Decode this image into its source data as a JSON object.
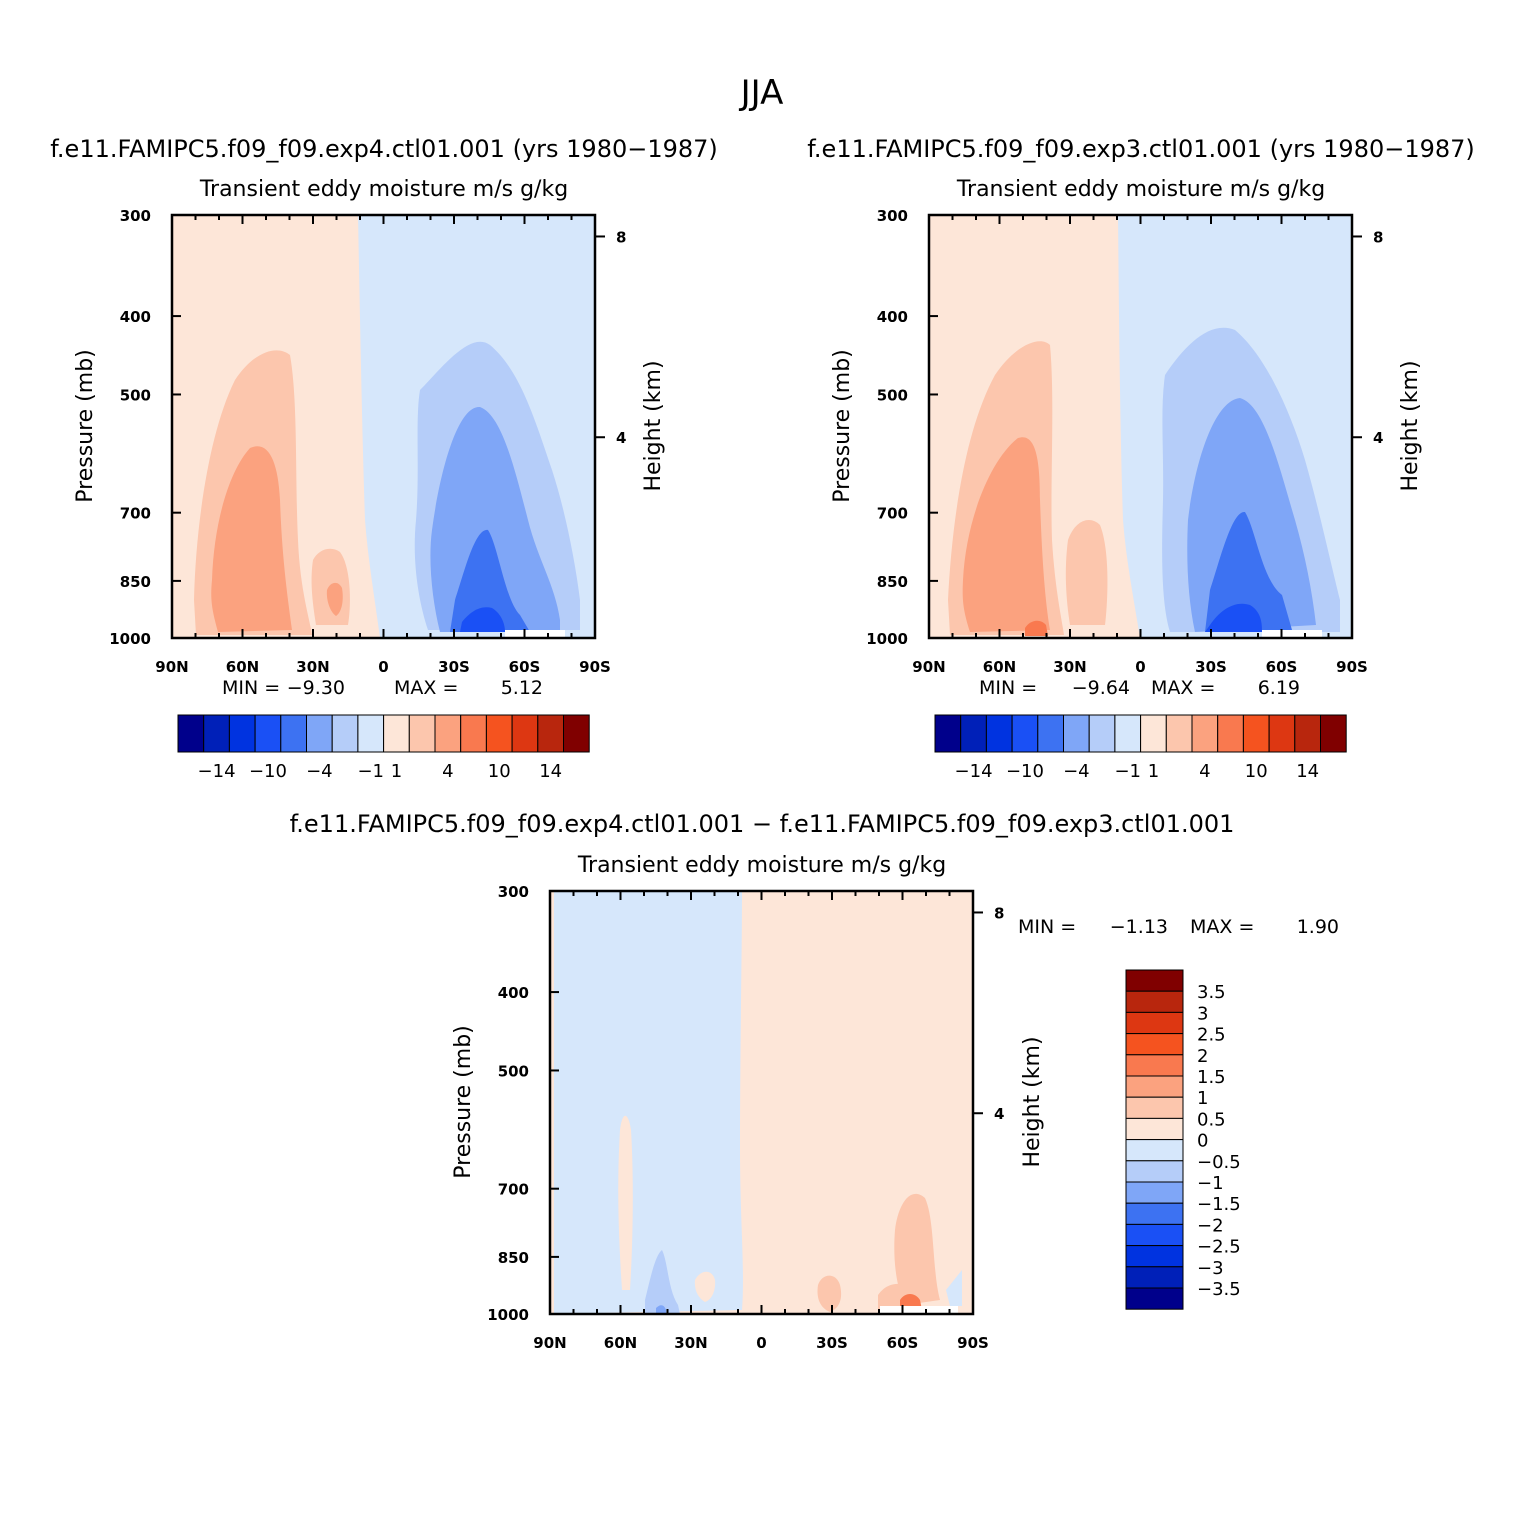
{
  "figure": {
    "title": "JJA",
    "variable_label": "Transient  eddy  moisture m/s  g/kg",
    "stats_label_min": "MIN  =",
    "stats_label_max": "MAX  =",
    "xlabel_key": "latitude"
  },
  "chart_data": [
    {
      "type": "contour",
      "title": "f.e11.FAMIPC5.f09_f09.exp4.ctl01.001  (yrs  1980−1987)",
      "subtitle": "Transient  eddy  moisture m/s  g/kg",
      "xlabel": "",
      "ylabel": "Pressure  (mb)",
      "ylabel_right": "Height  (km)",
      "x_ticks": [
        "90N",
        "60N",
        "30N",
        "0",
        "30S",
        "60S",
        "90S"
      ],
      "x_range": [
        90,
        -90
      ],
      "y_ticks": [
        "300",
        "400",
        "500",
        "700",
        "850",
        "1000"
      ],
      "y_range": [
        300,
        1000
      ],
      "y_ticks_right": [
        "8",
        "4"
      ],
      "min": "−9.30",
      "max": "5.12",
      "colorbar_labels": [
        "−14",
        "−10",
        "−4",
        "−1",
        "1",
        "4",
        "10",
        "14"
      ],
      "features": [
        {
          "sign": "positive",
          "region": "60N surface",
          "peak_level": "~1000 mb"
        },
        {
          "sign": "negative",
          "region": "40S-60S lower troposphere",
          "peak_level": "~1000 mb"
        }
      ]
    },
    {
      "type": "contour",
      "title": "f.e11.FAMIPC5.f09_f09.exp3.ctl01.001  (yrs  1980−1987)",
      "subtitle": "Transient  eddy  moisture m/s  g/kg",
      "xlabel": "",
      "ylabel": "Pressure  (mb)",
      "ylabel_right": "Height  (km)",
      "x_ticks": [
        "90N",
        "60N",
        "30N",
        "0",
        "30S",
        "60S",
        "90S"
      ],
      "x_range": [
        90,
        -90
      ],
      "y_ticks": [
        "300",
        "400",
        "500",
        "700",
        "850",
        "1000"
      ],
      "y_range": [
        300,
        1000
      ],
      "y_ticks_right": [
        "8",
        "4"
      ],
      "min": "−9.64",
      "max": "6.19",
      "colorbar_labels": [
        "−14",
        "−10",
        "−4",
        "−1",
        "1",
        "4",
        "10",
        "14"
      ],
      "features": [
        {
          "sign": "positive",
          "region": "60N surface",
          "peak_level": "~1000 mb"
        },
        {
          "sign": "negative",
          "region": "40S-60S lower troposphere",
          "peak_level": "~1000 mb"
        }
      ]
    },
    {
      "type": "contour",
      "title": "f.e11.FAMIPC5.f09_f09.exp4.ctl01.001  −  f.e11.FAMIPC5.f09_f09.exp3.ctl01.001",
      "subtitle": "Transient  eddy  moisture m/s  g/kg",
      "xlabel": "",
      "ylabel": "Pressure  (mb)",
      "ylabel_right": "Height  (km)",
      "x_ticks": [
        "90N",
        "60N",
        "30N",
        "0",
        "30S",
        "60S",
        "90S"
      ],
      "x_range": [
        90,
        -90
      ],
      "y_ticks": [
        "300",
        "400",
        "500",
        "700",
        "850",
        "1000"
      ],
      "y_range": [
        300,
        1000
      ],
      "y_ticks_right": [
        "8",
        "4"
      ],
      "min": "−1.13",
      "max": "1.90",
      "colorbar_labels": [
        "3.5",
        "3",
        "2.5",
        "2",
        "1.5",
        "1",
        "0.5",
        "0",
        "−0.5",
        "−1",
        "−1.5",
        "−2",
        "−2.5",
        "−3",
        "−3.5"
      ]
    }
  ],
  "colors": {
    "levels_16": [
      "#00008b",
      "#0020b8",
      "#0033e0",
      "#1a50f5",
      "#3d72f2",
      "#7fa6f7",
      "#b5cdf9",
      "#d6e7fb",
      "#fde6d8",
      "#fcc6ad",
      "#fba27f",
      "#f9794f",
      "#f5531f",
      "#dd3712",
      "#b8260d",
      "#800000"
    ],
    "diff_levels_16_top_down": [
      "#800000",
      "#b8260d",
      "#dd3712",
      "#f5531f",
      "#f9794f",
      "#fba27f",
      "#fcc6ad",
      "#fde6d8",
      "#d6e7fb",
      "#b5cdf9",
      "#7fa6f7",
      "#3d72f2",
      "#1a50f5",
      "#0033e0",
      "#0020b8",
      "#00008b"
    ]
  }
}
